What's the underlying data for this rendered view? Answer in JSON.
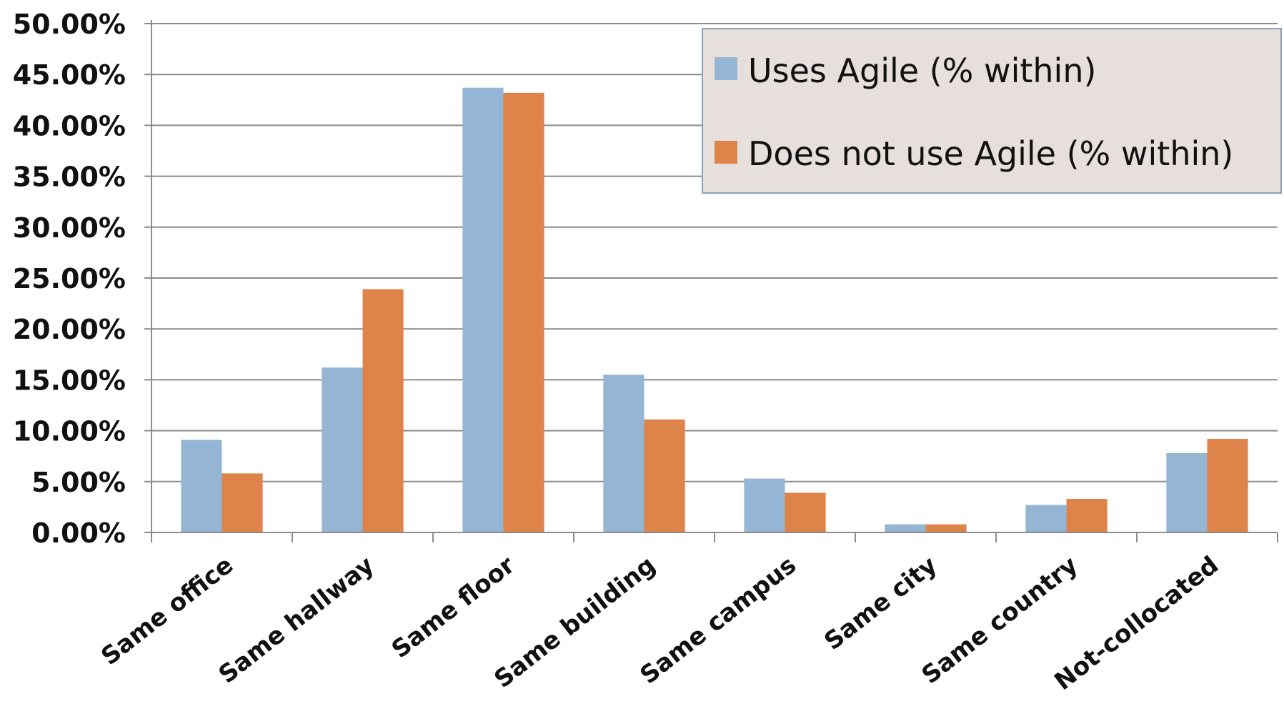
{
  "chart_data": {
    "type": "bar",
    "categories": [
      "Same office",
      "Same hallway",
      "Same floor",
      "Same building",
      "Same campus",
      "Same city",
      "Same country",
      "Not-collocated"
    ],
    "series": [
      {
        "name": "Uses Agile (% within)",
        "color": "#95b5d4",
        "values": [
          9.1,
          16.2,
          43.7,
          15.5,
          5.3,
          0.8,
          2.7,
          7.8
        ]
      },
      {
        "name": "Does not use Agile (% within)",
        "color": "#de834a",
        "values": [
          5.8,
          23.9,
          43.2,
          11.1,
          3.9,
          0.8,
          3.3,
          9.2
        ]
      }
    ],
    "yticks": [
      "0.00%",
      "5.00%",
      "10.00%",
      "15.00%",
      "20.00%",
      "25.00%",
      "30.00%",
      "35.00%",
      "40.00%",
      "45.00%",
      "50.00%"
    ],
    "ylim": [
      0,
      50
    ],
    "title": "",
    "xlabel": "",
    "ylabel": "",
    "grid": true,
    "legend_position": "top-right",
    "legend_background": "#e7dfdb"
  }
}
